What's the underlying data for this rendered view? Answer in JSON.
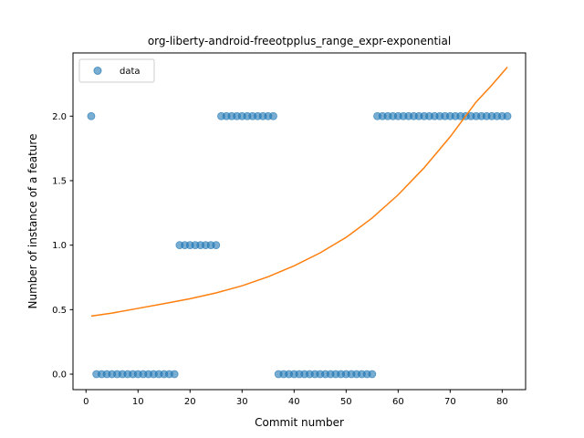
{
  "chart_data": {
    "type": "scatter",
    "title": "org-liberty-android-freeotpplus_range_expr-exponential",
    "xlabel": "Commit number",
    "ylabel": "Number of instance of a feature",
    "xlim": [
      -2.5,
      84.5
    ],
    "ylim": [
      -0.12,
      2.49
    ],
    "xticks": [
      0,
      10,
      20,
      30,
      40,
      50,
      60,
      70,
      80
    ],
    "xtick_labels": [
      "0",
      "10",
      "20",
      "30",
      "40",
      "50",
      "60",
      "70",
      "80"
    ],
    "yticks": [
      0.0,
      0.5,
      1.0,
      1.5,
      2.0
    ],
    "ytick_labels": [
      "0.0",
      "0.5",
      "1.0",
      "1.5",
      "2.0"
    ],
    "grid": false,
    "legend": {
      "placement": "top-left",
      "entries": [
        "data"
      ]
    },
    "series": [
      {
        "name": "data",
        "kind": "scatter",
        "color": "#1f77b4",
        "x": [
          1,
          2,
          3,
          4,
          5,
          6,
          7,
          8,
          9,
          10,
          11,
          12,
          13,
          14,
          15,
          16,
          17,
          18,
          19,
          20,
          21,
          22,
          23,
          24,
          25,
          26,
          27,
          28,
          29,
          30,
          31,
          32,
          33,
          34,
          35,
          36,
          37,
          38,
          39,
          40,
          41,
          42,
          43,
          44,
          45,
          46,
          47,
          48,
          49,
          50,
          51,
          52,
          53,
          54,
          55,
          56,
          57,
          58,
          59,
          60,
          61,
          62,
          63,
          64,
          65,
          66,
          67,
          68,
          69,
          70,
          71,
          72,
          73,
          74,
          75,
          76,
          77,
          78,
          79,
          80,
          81
        ],
        "y": [
          2,
          0,
          0,
          0,
          0,
          0,
          0,
          0,
          0,
          0,
          0,
          0,
          0,
          0,
          0,
          0,
          0,
          1,
          1,
          1,
          1,
          1,
          1,
          1,
          1,
          2,
          2,
          2,
          2,
          2,
          2,
          2,
          2,
          2,
          2,
          2,
          0,
          0,
          0,
          0,
          0,
          0,
          0,
          0,
          0,
          0,
          0,
          0,
          0,
          0,
          0,
          0,
          0,
          0,
          0,
          2,
          2,
          2,
          2,
          2,
          2,
          2,
          2,
          2,
          2,
          2,
          2,
          2,
          2,
          2,
          2,
          2,
          2,
          2,
          2,
          2,
          2,
          2,
          2,
          2,
          2
        ]
      },
      {
        "kind": "line",
        "color": "#ff7f0e",
        "x": [
          1,
          5,
          10,
          15,
          20,
          25,
          30,
          35,
          40,
          45,
          50,
          55,
          60,
          65,
          70,
          75,
          78,
          81
        ],
        "y": [
          0.45,
          0.473,
          0.51,
          0.547,
          0.585,
          0.63,
          0.685,
          0.755,
          0.84,
          0.94,
          1.06,
          1.21,
          1.39,
          1.6,
          1.84,
          2.11,
          2.24,
          2.38
        ]
      }
    ]
  }
}
